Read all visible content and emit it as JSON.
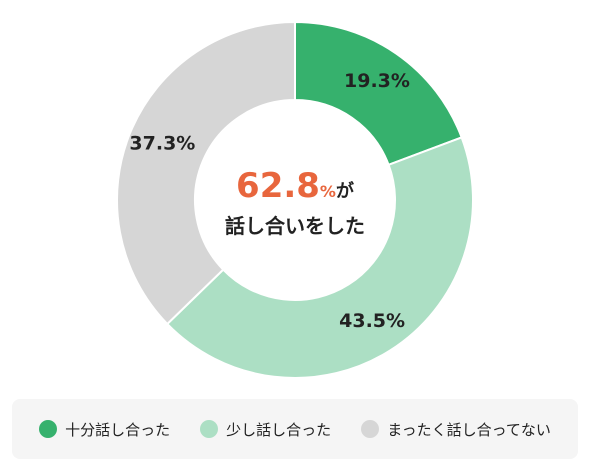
{
  "chart_data": {
    "type": "pie",
    "categories": [
      "十分話し合った",
      "少し話し合った",
      "まったく話し合ってない"
    ],
    "values": [
      19.3,
      43.5,
      37.3
    ],
    "value_labels": [
      "19.3%",
      "43.5%",
      "37.3%"
    ],
    "colors": [
      "#36b16d",
      "#acdfc4",
      "#d6d6d6"
    ],
    "donut": true,
    "legend_position": "bottom",
    "center_value": "62.8",
    "center_unit": "%",
    "center_suffix": "が",
    "center_label": "話し合いをした"
  }
}
